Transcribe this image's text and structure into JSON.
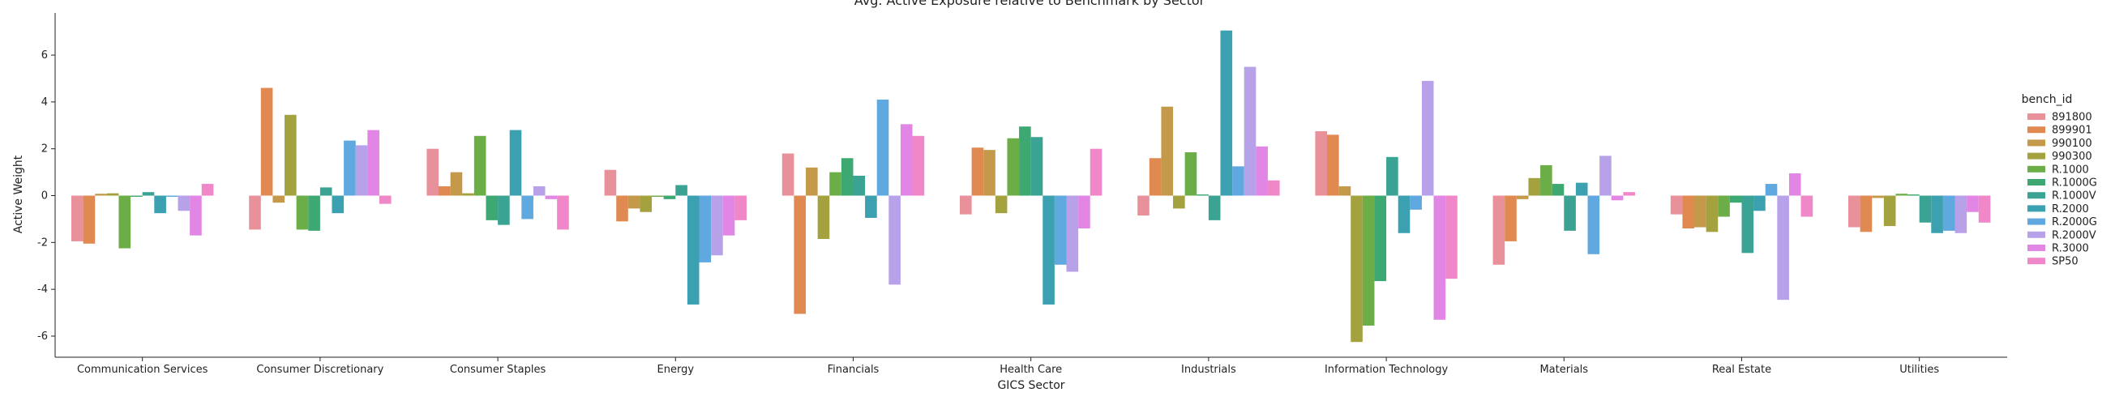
{
  "chart_data": {
    "type": "bar",
    "title": "Avg. Active Exposure relative to Benchmark by Sector",
    "xlabel": "GICS Sector",
    "ylabel": "Active Weight",
    "ylim": [
      -6.9,
      7.8
    ],
    "yticks": [
      -6,
      -4,
      -2,
      0,
      2,
      4,
      6
    ],
    "grid": false,
    "legend_title": "bench_id",
    "legend_position": "right",
    "categories": [
      "Communication Services",
      "Consumer Discretionary",
      "Consumer Staples",
      "Energy",
      "Financials",
      "Health Care",
      "Industrials",
      "Information Technology",
      "Materials",
      "Real Estate",
      "Utilities"
    ],
    "series": [
      {
        "name": "891800",
        "color": "#e8919b",
        "values": [
          -1.95,
          -1.45,
          2.0,
          1.1,
          1.8,
          -0.8,
          -0.85,
          2.75,
          -2.95,
          -0.8,
          -1.35
        ]
      },
      {
        "name": "899901",
        "color": "#e08a52",
        "values": [
          -2.05,
          4.6,
          0.4,
          -1.1,
          -5.05,
          2.05,
          1.6,
          2.6,
          -1.95,
          -1.4,
          -1.55
        ]
      },
      {
        "name": "990100",
        "color": "#c49a4a",
        "values": [
          0.08,
          -0.3,
          1.0,
          -0.55,
          1.2,
          1.95,
          3.8,
          0.4,
          -0.15,
          -1.35,
          -0.1
        ]
      },
      {
        "name": "990300",
        "color": "#a3a23e",
        "values": [
          0.1,
          3.45,
          0.1,
          -0.7,
          -1.85,
          -0.75,
          -0.55,
          -6.25,
          0.75,
          -1.55,
          -1.3
        ]
      },
      {
        "name": "R.1000",
        "color": "#6bae48",
        "values": [
          -2.25,
          -1.45,
          2.55,
          -0.05,
          1.0,
          2.45,
          1.85,
          -5.55,
          1.3,
          -0.9,
          0.08
        ]
      },
      {
        "name": "R.1000G",
        "color": "#3da871",
        "values": [
          -0.05,
          -1.5,
          -1.05,
          -0.15,
          1.6,
          2.95,
          0.05,
          -3.65,
          0.5,
          -0.3,
          0.05
        ]
      },
      {
        "name": "R.1000V",
        "color": "#3aa394",
        "values": [
          0.15,
          0.35,
          -1.25,
          0.45,
          0.85,
          2.5,
          -1.05,
          1.65,
          -1.5,
          -2.45,
          -1.15
        ]
      },
      {
        "name": "R.2000",
        "color": "#3ba0b0",
        "values": [
          -0.75,
          -0.75,
          2.8,
          -4.65,
          -0.95,
          -4.65,
          7.05,
          -1.6,
          0.55,
          -0.65,
          -1.6
        ]
      },
      {
        "name": "R.2000G",
        "color": "#5fa8e0",
        "values": [
          -0.05,
          2.35,
          -1.0,
          -2.85,
          4.1,
          -2.95,
          1.25,
          -0.6,
          -2.5,
          0.5,
          -1.5
        ]
      },
      {
        "name": "R.2000V",
        "color": "#b7a2ea",
        "values": [
          -0.65,
          2.15,
          0.4,
          -2.55,
          -3.8,
          -3.25,
          5.5,
          4.9,
          1.7,
          -4.45,
          -1.6
        ]
      },
      {
        "name": "R.3000",
        "color": "#e186e4",
        "values": [
          -1.7,
          2.8,
          -0.15,
          -1.7,
          3.05,
          -1.4,
          2.1,
          -5.3,
          -0.2,
          0.95,
          -0.7
        ]
      },
      {
        "name": "SP50",
        "color": "#ef87c8",
        "values": [
          0.5,
          -0.35,
          -1.45,
          -1.05,
          2.55,
          2.0,
          0.65,
          -3.55,
          0.15,
          -0.9,
          -1.15
        ]
      }
    ]
  }
}
